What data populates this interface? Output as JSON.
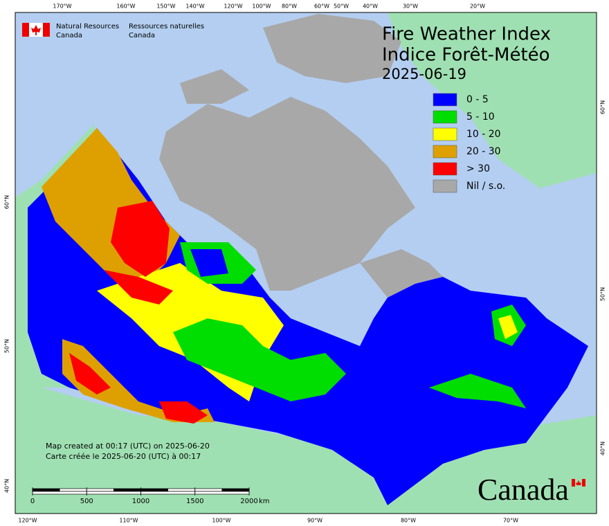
{
  "header": {
    "org_en": [
      "Natural Resources",
      "Canada"
    ],
    "org_fr": [
      "Ressources naturelles",
      "Canada"
    ]
  },
  "title": [
    "Fire Weather Index",
    "Indice Forêt-Météo"
  ],
  "date": "2025-06-19",
  "legend": [
    {
      "label": "0 - 5",
      "color": "#0000ff"
    },
    {
      "label": "5 - 10",
      "color": "#00dd00"
    },
    {
      "label": "10 - 20",
      "color": "#ffff00"
    },
    {
      "label": "20 - 30",
      "color": "#dda000"
    },
    {
      "label": "> 30",
      "color": "#ff0000"
    },
    {
      "label": "Nil / s.o.",
      "color": "#a8a8a8"
    }
  ],
  "top_labels": [
    "170°W",
    "160°W",
    "150°W",
    "140°W",
    "120°W",
    "100°W",
    "80°W",
    "60°W",
    "50°W",
    "40°W",
    "30°W",
    "20°W"
  ],
  "bottom_labels": [
    "120°W",
    "110°W",
    "100°W",
    "90°W",
    "80°W",
    "70°W"
  ],
  "left_labels": [
    "60°N",
    "50°N",
    "40°N"
  ],
  "right_labels": [
    "60°N",
    "50°N",
    "40°N"
  ],
  "notes": [
    "Map created at 00:17 (UTC) on 2025-06-20",
    "Carte créée le 2025-06-20 (UTC) à 00:17"
  ],
  "scale": {
    "ticks": [
      0,
      500,
      1000,
      1500,
      2000
    ],
    "unit": "km"
  },
  "wordmark": "Canada"
}
